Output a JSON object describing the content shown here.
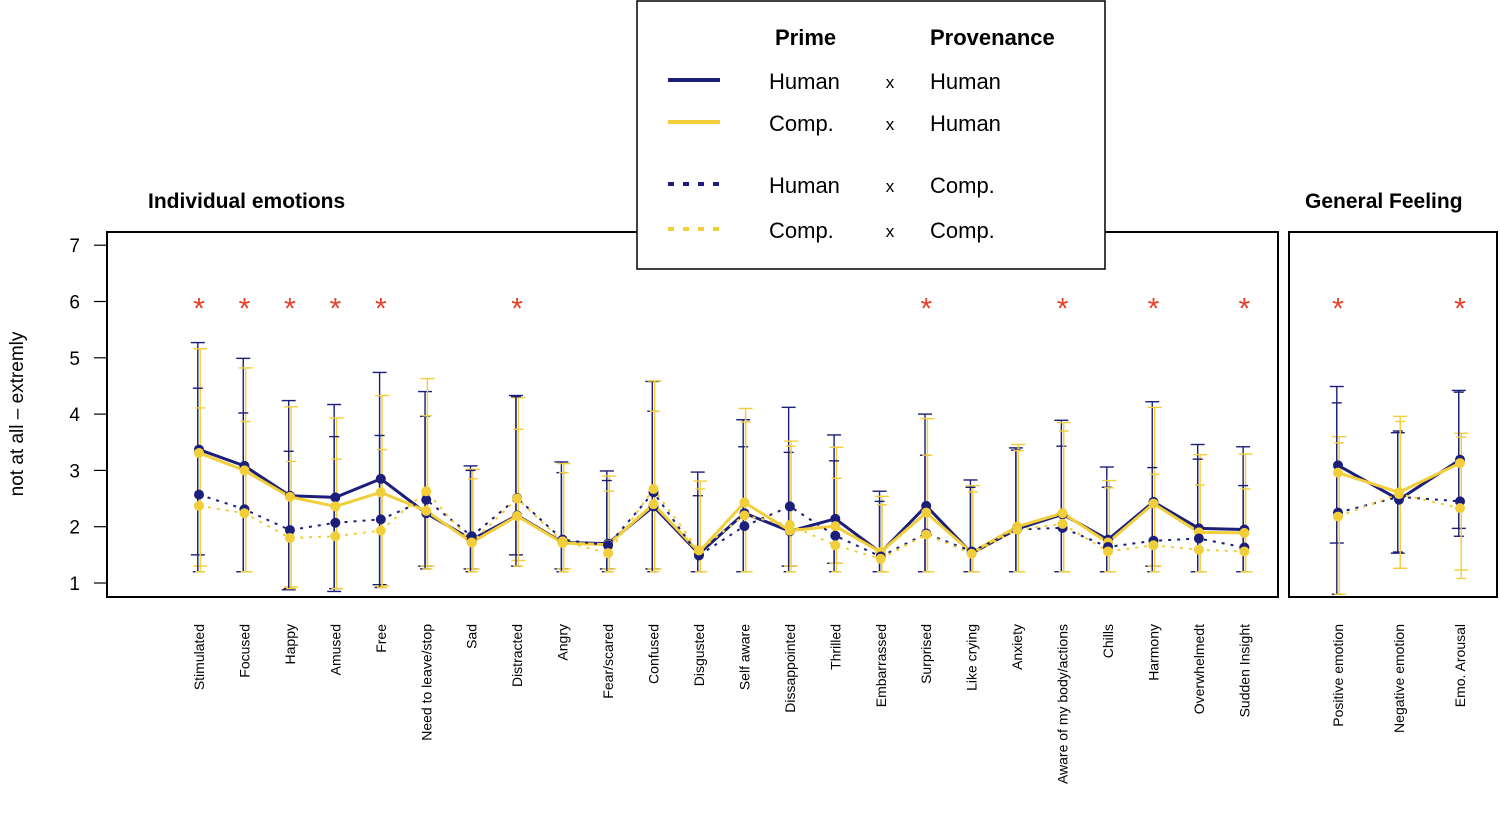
{
  "chart_data": {
    "type": "line",
    "y_axis": {
      "label": "not at all – extremly",
      "range": [
        1,
        7
      ],
      "ticks": [
        1,
        2,
        3,
        4,
        5,
        6,
        7
      ]
    },
    "colors": {
      "human_prime": "#1b1f7a",
      "comp_prime": "#f2cf3a",
      "significance": "#e8402a"
    },
    "legend": {
      "header_prime": "Prime",
      "header_provenance": "Provenance",
      "cross": "x",
      "entries": [
        {
          "prime": "Human",
          "provenance": "Human",
          "color": "#1b1f7a",
          "dash": "solid"
        },
        {
          "prime": "Comp.",
          "provenance": "Human",
          "color": "#f2cf3a",
          "dash": "solid"
        },
        {
          "prime": "Human",
          "provenance": "Comp.",
          "color": "#1b1f7a",
          "dash": "dotted"
        },
        {
          "prime": "Comp.",
          "provenance": "Comp.",
          "color": "#f2cf3a",
          "dash": "dotted"
        }
      ]
    },
    "significance_marker": "*",
    "panels": [
      {
        "title": "Individual emotions",
        "categories": [
          "Stimulated",
          "Focused",
          "Happy",
          "Amused",
          "Free",
          "Need to leave/stop",
          "Sad",
          "Distracted",
          "Angry",
          "Fear/scared",
          "Confused",
          "Disgusted",
          "Self aware",
          "Dissappointed",
          "Thrilled",
          "Embarrassed",
          "Surprised",
          "Like crying",
          "Anxiety",
          "Aware of my body/actions",
          "Chills",
          "Harmony",
          "Overwhelmedt",
          "Sudden Insight"
        ],
        "significant": [
          true,
          true,
          true,
          true,
          true,
          false,
          false,
          true,
          false,
          false,
          false,
          false,
          false,
          false,
          false,
          false,
          true,
          false,
          false,
          true,
          false,
          true,
          false,
          true
        ],
        "series": [
          {
            "values": [
              3.37,
              3.08,
              2.55,
              2.52,
              2.85,
              2.24,
              1.77,
              2.2,
              1.72,
              1.7,
              2.36,
              1.52,
              2.24,
              1.92,
              2.14,
              1.54,
              2.37,
              1.53,
              1.96,
              2.22,
              1.77,
              2.44,
              1.97,
              1.95
            ],
            "err_low": [
              1.5,
              1.2,
              0.88,
              0.85,
              0.97,
              1.3,
              1.25,
              1.5,
              1.25,
              1.25,
              1.25,
              1.2,
              1.2,
              1.3,
              1.35,
              1.2,
              1.2,
              1.2,
              1.2,
              1.2,
              1.2,
              1.3,
              1.2,
              1.2
            ],
            "err_high": [
              5.27,
              4.99,
              4.24,
              4.17,
              4.74,
              4.4,
              3.08,
              4.33,
              3.15,
              2.99,
              4.58,
              2.97,
              3.9,
              4.12,
              3.63,
              2.63,
              4.0,
              2.83,
              3.4,
              3.89,
              3.06,
              4.22,
              3.46,
              3.42
            ]
          },
          {
            "values": [
              3.31,
              3.0,
              2.53,
              2.36,
              2.61,
              2.28,
              1.72,
              2.19,
              1.71,
              1.68,
              2.4,
              1.55,
              2.43,
              1.93,
              2.01,
              1.55,
              2.25,
              1.54,
              2.0,
              2.24,
              1.72,
              2.41,
              1.9,
              1.89
            ],
            "err_low": [
              1.3,
              1.2,
              0.93,
              0.9,
              0.95,
              1.3,
              1.25,
              1.4,
              1.25,
              1.25,
              1.25,
              1.2,
              1.2,
              1.3,
              1.35,
              1.2,
              1.2,
              1.2,
              1.2,
              1.2,
              1.2,
              1.3,
              1.2,
              1.2
            ],
            "err_high": [
              5.16,
              4.82,
              4.13,
              3.93,
              4.33,
              4.63,
              3.02,
              4.29,
              3.12,
              2.9,
              4.59,
              2.81,
              4.1,
              3.52,
              3.41,
              2.54,
              3.92,
              2.73,
              3.46,
              3.85,
              2.82,
              4.12,
              3.28,
              3.29
            ]
          },
          {
            "values": [
              2.57,
              2.31,
              1.94,
              2.07,
              2.13,
              2.48,
              1.83,
              2.51,
              1.77,
              1.67,
              2.61,
              1.49,
              2.01,
              2.36,
              1.84,
              1.47,
              1.88,
              1.56,
              1.95,
              1.98,
              1.64,
              1.75,
              1.79,
              1.63
            ],
            "err_low": [
              1.2,
              1.2,
              0.9,
              0.9,
              0.92,
              1.25,
              1.2,
              1.3,
              1.2,
              1.2,
              1.2,
              1.2,
              1.2,
              1.2,
              1.2,
              1.2,
              1.2,
              1.2,
              1.2,
              1.2,
              1.2,
              1.2,
              1.2,
              1.2
            ],
            "err_high": [
              4.46,
              4.02,
              3.34,
              3.6,
              3.62,
              3.96,
              3.0,
              4.31,
              2.96,
              2.82,
              4.05,
              2.55,
              3.42,
              3.32,
              3.17,
              2.45,
              3.27,
              2.7,
              3.36,
              3.43,
              2.7,
              3.05,
              3.2,
              2.73
            ]
          },
          {
            "values": [
              2.37,
              2.24,
              1.8,
              1.83,
              1.93,
              2.63,
              1.72,
              2.5,
              1.74,
              1.53,
              2.67,
              1.58,
              2.2,
              2.03,
              1.67,
              1.43,
              1.86,
              1.52,
              1.95,
              2.05,
              1.56,
              1.67,
              1.59,
              1.56
            ],
            "err_low": [
              1.2,
              1.2,
              0.9,
              0.9,
              0.92,
              1.25,
              1.2,
              1.3,
              1.2,
              1.2,
              1.2,
              1.2,
              1.2,
              1.2,
              1.2,
              1.2,
              1.2,
              1.2,
              1.2,
              1.2,
              1.2,
              1.2,
              1.2,
              1.2
            ],
            "err_high": [
              4.11,
              3.87,
              3.16,
              3.2,
              3.37,
              3.97,
              2.85,
              3.73,
              2.96,
              2.63,
              4.05,
              2.67,
              3.86,
              3.43,
              2.86,
              2.39,
              3.27,
              2.62,
              3.35,
              3.7,
              2.69,
              2.93,
              2.74,
              2.67
            ]
          }
        ]
      },
      {
        "title": "General Feeling",
        "categories": [
          "Positive emotion",
          "Negative emotion",
          "Emo. Arousal"
        ],
        "significant": [
          true,
          false,
          true
        ],
        "series": [
          {
            "values": [
              3.09,
              2.48,
              3.19
            ],
            "err_low": [
              1.71,
              1.53,
              1.97
            ],
            "err_high": [
              4.49,
              3.67,
              4.42
            ]
          },
          {
            "values": [
              2.96,
              2.61,
              3.13
            ],
            "err_low": [
              0.8,
              1.26,
              1.23
            ],
            "err_high": [
              3.6,
              3.96,
              3.66
            ]
          },
          {
            "values": [
              2.25,
              2.53,
              2.45
            ],
            "err_low": [
              0.8,
              1.55,
              1.83
            ],
            "err_high": [
              4.2,
              3.7,
              4.39
            ]
          },
          {
            "values": [
              2.18,
              2.58,
              2.33
            ],
            "err_low": [
              0.8,
              1.26,
              1.08
            ],
            "err_high": [
              3.49,
              3.87,
              3.59
            ]
          }
        ]
      }
    ]
  }
}
